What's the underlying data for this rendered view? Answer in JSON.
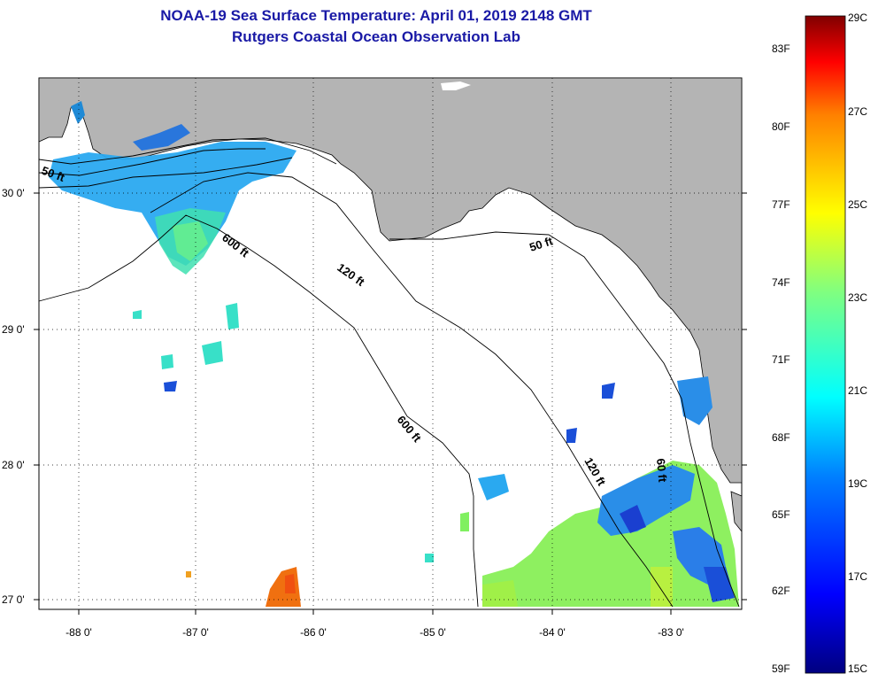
{
  "header": {
    "title": "NOAA-19 Sea Surface Temperature:  April 01, 2019 2148 GMT",
    "subtitle": "Rutgers Coastal Ocean Observation Lab"
  },
  "map": {
    "lat_labels": [
      "30 0'",
      "29 0'",
      "28 0'",
      "27 0'"
    ],
    "lon_labels": [
      "-88 0'",
      "-87 0'",
      "-86 0'",
      "-85 0'",
      "-84 0'",
      "-83 0'"
    ],
    "contour_labels": {
      "c50_west": "50 ft",
      "c50_east": "50 ft",
      "c120_north": "120 ft",
      "c120_south": "120 ft",
      "c600_north": "600 ft",
      "c600_south": "600 ft",
      "c60_coast": "60 ft"
    },
    "colors": {
      "land": "#b4b4b4",
      "ocean": "#ffffff"
    }
  },
  "colorbar": {
    "fahrenheit_labels": [
      "83F",
      "80F",
      "77F",
      "74F",
      "71F",
      "68F",
      "65F",
      "62F",
      "59F"
    ],
    "celsius_labels": [
      "29C",
      "27C",
      "25C",
      "23C",
      "21C",
      "19C",
      "17C",
      "15C"
    ],
    "range_c": [
      15,
      29
    ]
  }
}
